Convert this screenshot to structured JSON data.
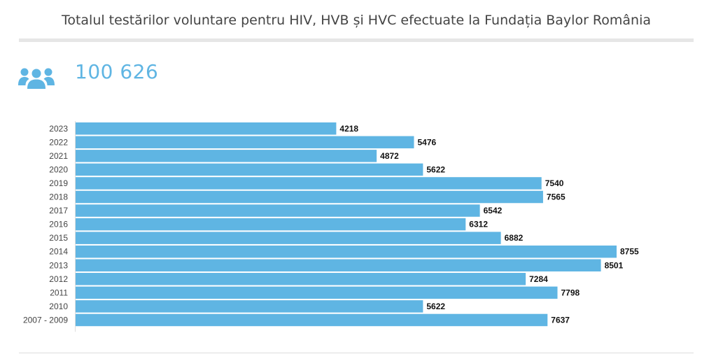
{
  "header": {
    "title": "Totalul testărilor voluntare pentru HIV, HVB și HVC efectuate la Fundația Baylor România"
  },
  "kpi": {
    "icon": "users-group-icon",
    "value": "100 626"
  },
  "colors": {
    "bar": "#5fb5e3",
    "kpi": "#5fb5e3",
    "title": "#444444"
  },
  "chart_data": {
    "type": "bar",
    "orientation": "horizontal",
    "title": "Totalul testărilor voluntare pentru HIV, HVB și HVC efectuate la Fundația Baylor România",
    "xlabel": "",
    "ylabel": "",
    "categories": [
      "2023",
      "2022",
      "2021",
      "2020",
      "2019",
      "2018",
      "2017",
      "2016",
      "2015",
      "2014",
      "2013",
      "2012",
      "2011",
      "2010",
      "2007 - 2009"
    ],
    "values": [
      4218,
      5476,
      4872,
      5622,
      7540,
      7565,
      6542,
      6312,
      6882,
      8755,
      8501,
      7284,
      7798,
      5622,
      7637
    ],
    "xlim": [
      0,
      8755
    ],
    "grid": false,
    "data_labels": true,
    "legend": "none"
  }
}
